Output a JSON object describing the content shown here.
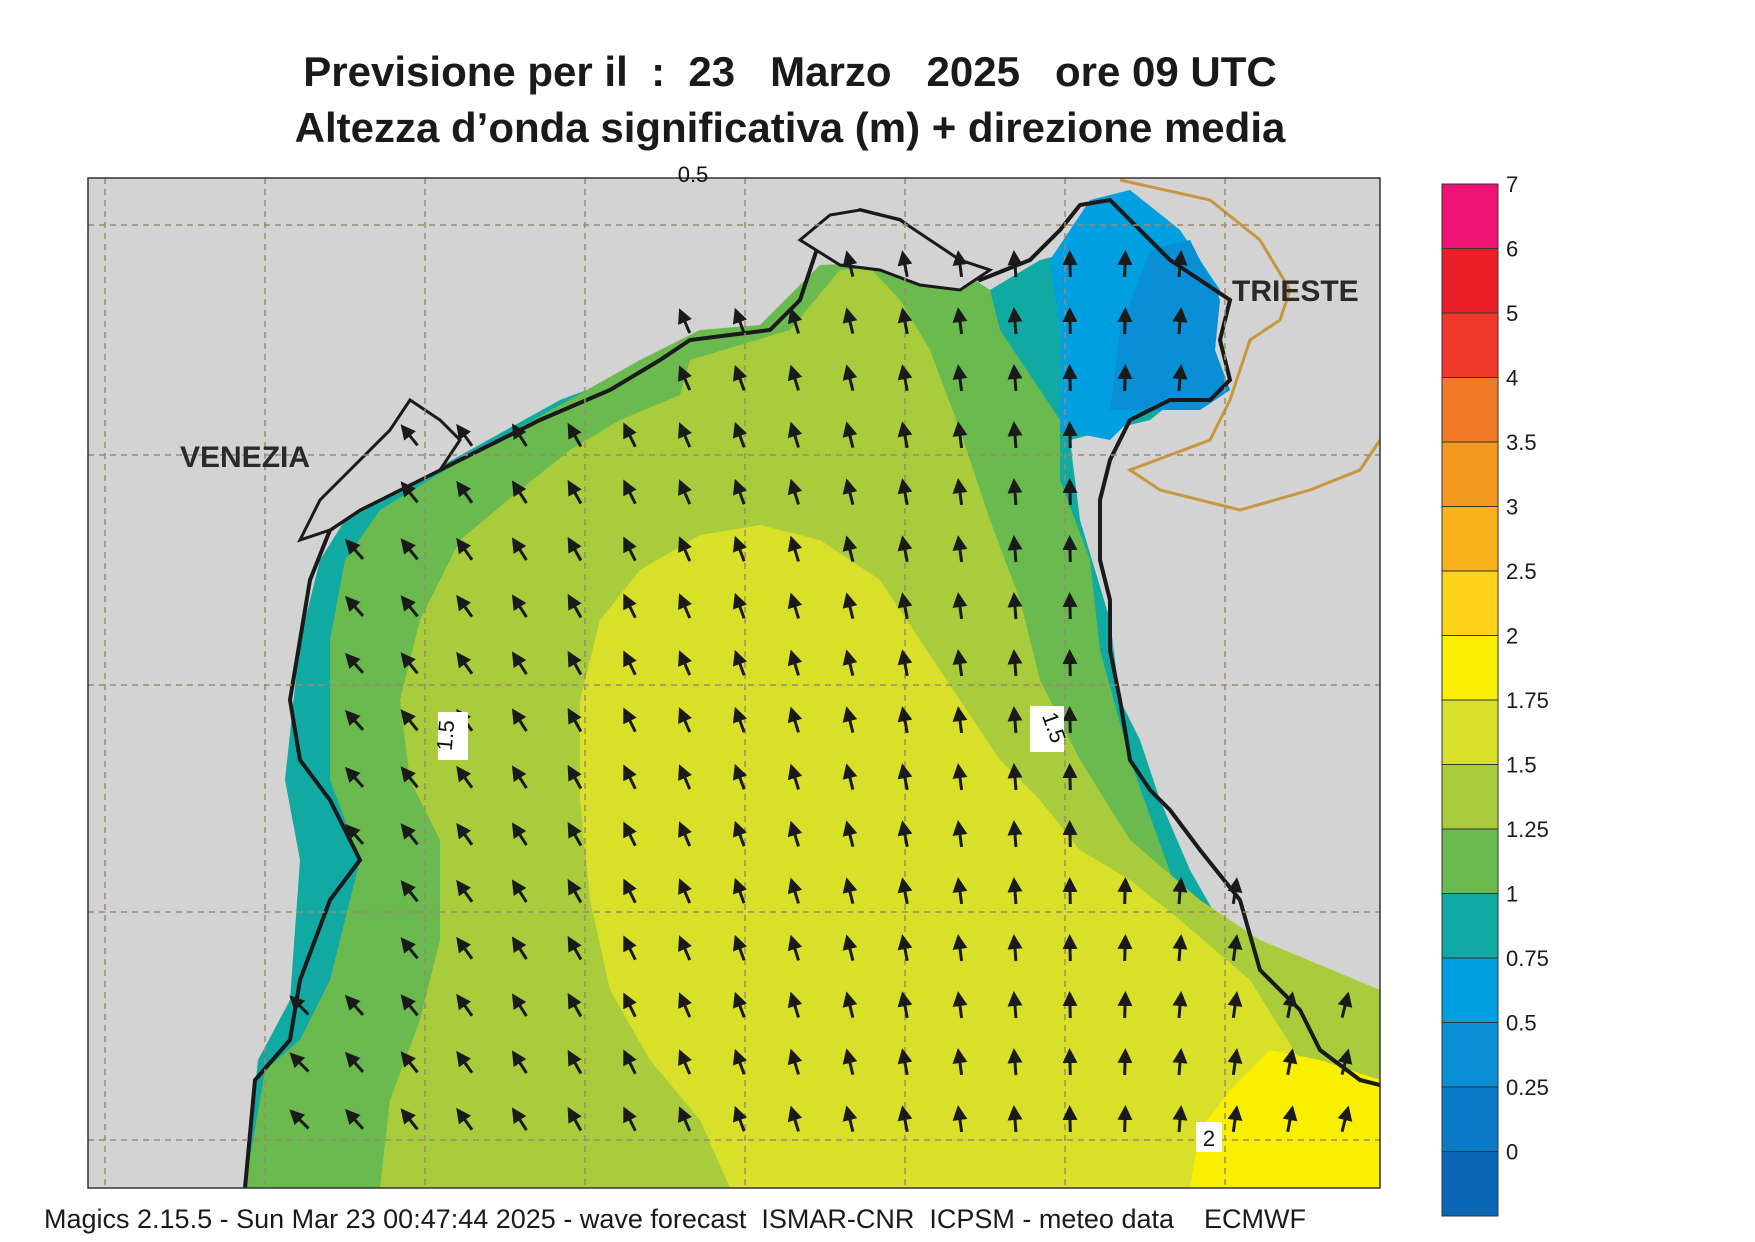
{
  "title": {
    "line1": "Previsione per il  :  23   Marzo   2025   ore 09 UTC",
    "line2": "Altezza d’onda significativa (m) + direzione media"
  },
  "cities": {
    "venezia": "VENEZIA",
    "trieste": "TRIESTE"
  },
  "contour_labels": {
    "west": "1.5",
    "east": "1.5",
    "south": "2",
    "top": "0.5"
  },
  "legend": {
    "ticks": [
      "7",
      "6",
      "5",
      "4",
      "3.5",
      "3",
      "2.5",
      "2",
      "1.75",
      "1.5",
      "1.25",
      "1",
      "0.75",
      "0.5",
      "0.25",
      "0"
    ],
    "colors": [
      "#ee1176",
      "#ea1f2a",
      "#f0382a",
      "#f07a28",
      "#f59a20",
      "#f8b21b",
      "#fcd31a",
      "#f9ef00",
      "#d8e02a",
      "#a8cc3c",
      "#6bba50",
      "#10aaa2",
      "#009fe1",
      "#0a8ed6",
      "#0b7ac6",
      "#0b67b5"
    ]
  },
  "map_colors": {
    "land": "#d3d3d3",
    "sea_1_25": "#10aaa2",
    "sea_1_5": "#6bba50",
    "sea_1_75": "#a8cc3c",
    "sea_2": "#d8e02a",
    "sea_2_5": "#f9ef00",
    "sea_0_75": "#009fe1",
    "sea_0_5": "#0a8ed6",
    "grid": "#9c8a6e",
    "border": "#c8963c"
  },
  "footer": "Magics 2.15.5 - Sun Mar 23 00:47:44 2025 - wave forecast  ISMAR-CNR  ICPSM - meteo data    ECMWF"
}
